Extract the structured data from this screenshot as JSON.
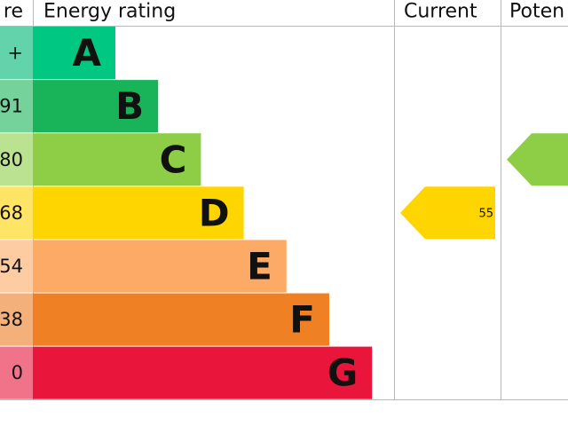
{
  "header": {
    "score": "re",
    "rating": "Energy rating",
    "current": "Current",
    "potential": "Poten"
  },
  "bands": [
    {
      "score": "+",
      "letter": "A",
      "color": "#00c781",
      "tint": "#62d3ab"
    },
    {
      "score": "91",
      "letter": "B",
      "color": "#19b459",
      "tint": "#75d29b"
    },
    {
      "score": "80",
      "letter": "C",
      "color": "#8dce46",
      "tint": "#bbe290"
    },
    {
      "score": "68",
      "letter": "D",
      "color": "#ffd500",
      "tint": "#ffe466"
    },
    {
      "score": "54",
      "letter": "E",
      "color": "#fcaa65",
      "tint": "#fdcca2"
    },
    {
      "score": "38",
      "letter": "F",
      "color": "#ef8023",
      "tint": "#f4b07b"
    },
    {
      "score": "0",
      "letter": "G",
      "color": "#e9153b",
      "tint": "#f0738a"
    }
  ],
  "current": {
    "value": 55,
    "band": 3
  },
  "potential": {
    "band": 2
  }
}
